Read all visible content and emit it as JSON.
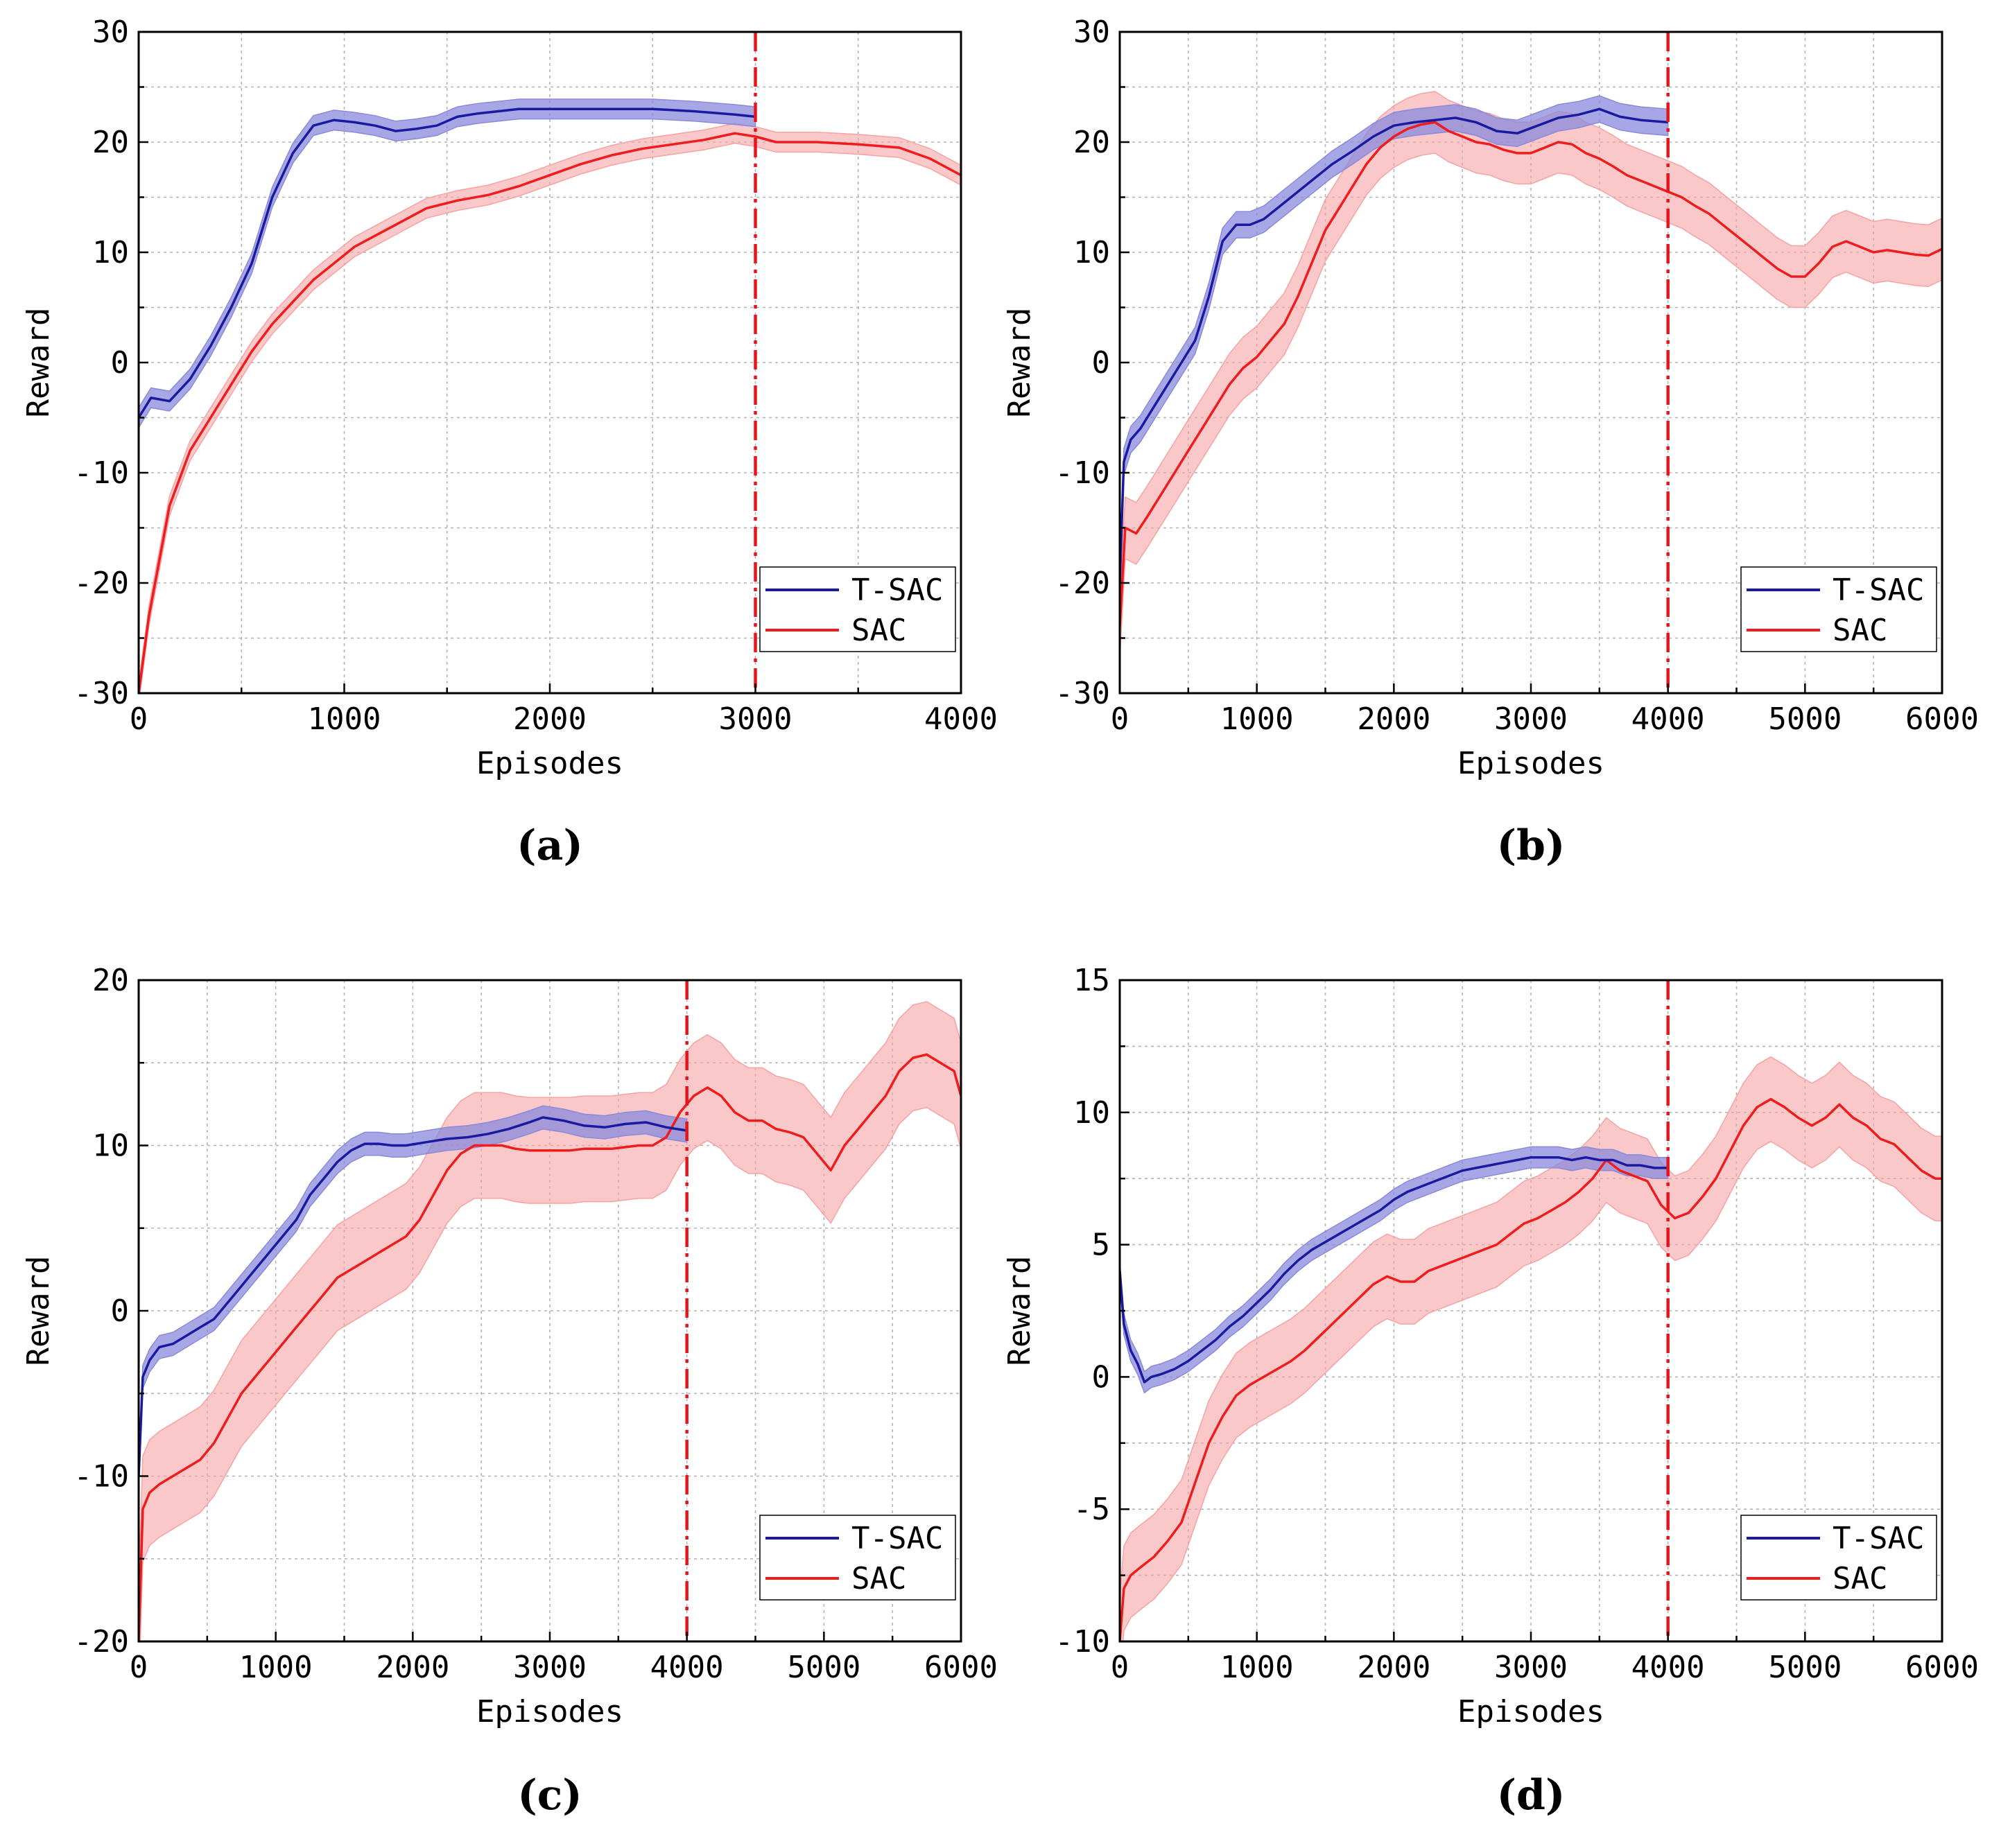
{
  "colors": {
    "tsac": "#1a1aa0",
    "tsac_band": "#8a8adc",
    "sac": "#ee1c1c",
    "sac_band": "#f6a3a3",
    "switch_line": "#e8141c"
  },
  "chart_data": [
    {
      "type": "line",
      "panel_label": "(a)",
      "xlabel": "Episodes",
      "ylabel": "Reward",
      "xlim": [
        0,
        4000
      ],
      "ylim": [
        -30,
        30
      ],
      "xticks": [
        0,
        1000,
        2000,
        3000,
        4000
      ],
      "yticks": [
        -30,
        -20,
        -10,
        0,
        10,
        20,
        30
      ],
      "grid": true,
      "legend_position": "bottom-right",
      "vline_x": 3000,
      "series": [
        {
          "name": "T-SAC",
          "color": "#1a1aa0",
          "x": [
            0,
            60,
            150,
            250,
            350,
            450,
            550,
            650,
            750,
            850,
            950,
            1050,
            1150,
            1250,
            1350,
            1450,
            1550,
            1650,
            1750,
            1850,
            1950,
            2100,
            2300,
            2500,
            2700,
            2900,
            3000
          ],
          "y": [
            -5,
            -3.2,
            -3.5,
            -1.5,
            1.5,
            5,
            9,
            15,
            19,
            21.5,
            22,
            21.8,
            21.5,
            21,
            21.2,
            21.5,
            22.3,
            22.6,
            22.8,
            23,
            23,
            23,
            23,
            23,
            22.8,
            22.5,
            22.3
          ],
          "band": 0.9
        },
        {
          "name": "SAC",
          "color": "#ee1c1c",
          "x": [
            0,
            50,
            150,
            250,
            350,
            450,
            550,
            650,
            750,
            850,
            950,
            1050,
            1150,
            1250,
            1400,
            1550,
            1700,
            1850,
            2000,
            2150,
            2300,
            2450,
            2600,
            2750,
            2900,
            3000,
            3100,
            3300,
            3500,
            3700,
            3850,
            4000
          ],
          "y": [
            -30,
            -23,
            -13,
            -8,
            -5,
            -2,
            1,
            3.5,
            5.5,
            7.5,
            9,
            10.5,
            11.5,
            12.5,
            14,
            14.7,
            15.2,
            16,
            17,
            18,
            18.8,
            19.4,
            19.8,
            20.2,
            20.8,
            20.5,
            20,
            20,
            19.8,
            19.5,
            18.5,
            17
          ],
          "band": 0.9
        }
      ]
    },
    {
      "type": "line",
      "panel_label": "(b)",
      "xlabel": "Episodes",
      "ylabel": "Reward",
      "xlim": [
        0,
        6000
      ],
      "ylim": [
        -30,
        30
      ],
      "xticks": [
        0,
        1000,
        2000,
        3000,
        4000,
        5000,
        6000
      ],
      "yticks": [
        -30,
        -20,
        -10,
        0,
        10,
        20,
        30
      ],
      "grid": true,
      "legend_position": "bottom-right",
      "vline_x": 4000,
      "series": [
        {
          "name": "T-SAC",
          "color": "#1a1aa0",
          "x": [
            0,
            30,
            80,
            150,
            250,
            350,
            450,
            550,
            650,
            750,
            850,
            950,
            1050,
            1150,
            1250,
            1400,
            1550,
            1700,
            1850,
            2000,
            2150,
            2300,
            2450,
            2600,
            2750,
            2900,
            3050,
            3200,
            3350,
            3500,
            3650,
            3800,
            4000
          ],
          "y": [
            -20,
            -9,
            -7,
            -6,
            -4,
            -2,
            0,
            2,
            6,
            11,
            12.5,
            12.5,
            13,
            14,
            15,
            16.5,
            18,
            19.2,
            20.5,
            21.5,
            21.8,
            22,
            22.2,
            21.8,
            21,
            20.8,
            21.5,
            22.2,
            22.5,
            23,
            22.3,
            22,
            21.8
          ],
          "band": 1.2
        },
        {
          "name": "SAC",
          "color": "#ee1c1c",
          "x": [
            0,
            40,
            120,
            200,
            300,
            400,
            500,
            600,
            700,
            800,
            900,
            1000,
            1100,
            1200,
            1300,
            1400,
            1500,
            1600,
            1700,
            1800,
            1900,
            2000,
            2100,
            2200,
            2300,
            2400,
            2500,
            2600,
            2700,
            2800,
            2900,
            3000,
            3100,
            3200,
            3300,
            3400,
            3500,
            3600,
            3700,
            3800,
            3900,
            4000,
            4100,
            4200,
            4300,
            4400,
            4500,
            4600,
            4700,
            4800,
            4900,
            5000,
            5100,
            5200,
            5300,
            5400,
            5500,
            5600,
            5700,
            5800,
            5900,
            6000
          ],
          "y": [
            -24,
            -15,
            -15.5,
            -14,
            -12,
            -10,
            -8,
            -6,
            -4,
            -2,
            -0.5,
            0.5,
            2,
            3.5,
            6,
            9,
            12,
            14,
            16,
            18,
            19.5,
            20.5,
            21.2,
            21.6,
            21.8,
            21,
            20.5,
            20,
            19.8,
            19.3,
            19,
            19,
            19.5,
            20,
            19.8,
            19,
            18.5,
            17.8,
            17,
            16.5,
            16,
            15.5,
            15,
            14.2,
            13.5,
            12.5,
            11.5,
            10.5,
            9.5,
            8.5,
            7.8,
            7.8,
            9,
            10.5,
            11,
            10.5,
            10,
            10.2,
            10,
            9.8,
            9.7,
            10.3
          ],
          "band": 2.8
        }
      ]
    },
    {
      "type": "line",
      "panel_label": "(c)",
      "xlabel": "Episodes",
      "ylabel": "Reward",
      "xlim": [
        0,
        6000
      ],
      "ylim": [
        -20,
        20
      ],
      "xticks": [
        0,
        1000,
        2000,
        3000,
        4000,
        5000,
        6000
      ],
      "yticks": [
        -20,
        -10,
        0,
        10,
        20
      ],
      "grid": true,
      "legend_position": "bottom-right",
      "vline_x": 4000,
      "series": [
        {
          "name": "T-SAC",
          "color": "#1a1aa0",
          "x": [
            0,
            30,
            80,
            150,
            250,
            350,
            450,
            550,
            650,
            750,
            850,
            950,
            1050,
            1150,
            1250,
            1350,
            1450,
            1550,
            1650,
            1750,
            1850,
            1950,
            2100,
            2250,
            2400,
            2550,
            2700,
            2850,
            2950,
            3100,
            3250,
            3400,
            3550,
            3700,
            3850,
            4000
          ],
          "y": [
            -10,
            -4,
            -3,
            -2.2,
            -2,
            -1.5,
            -1,
            -0.5,
            0.5,
            1.5,
            2.5,
            3.5,
            4.5,
            5.5,
            7,
            8,
            9,
            9.7,
            10.1,
            10.1,
            10,
            10,
            10.2,
            10.4,
            10.5,
            10.7,
            11,
            11.4,
            11.7,
            11.5,
            11.2,
            11.1,
            11.3,
            11.4,
            11.1,
            10.9
          ],
          "band": 0.7
        },
        {
          "name": "SAC",
          "color": "#ee1c1c",
          "x": [
            0,
            30,
            80,
            150,
            250,
            350,
            450,
            550,
            650,
            750,
            850,
            950,
            1050,
            1150,
            1250,
            1350,
            1450,
            1550,
            1650,
            1750,
            1850,
            1950,
            2050,
            2150,
            2250,
            2350,
            2450,
            2550,
            2650,
            2750,
            2850,
            2950,
            3050,
            3150,
            3250,
            3350,
            3450,
            3550,
            3650,
            3750,
            3850,
            3950,
            4050,
            4150,
            4250,
            4350,
            4450,
            4550,
            4650,
            4750,
            4850,
            4950,
            5050,
            5150,
            5250,
            5350,
            5450,
            5550,
            5650,
            5750,
            5850,
            5950,
            6000
          ],
          "y": [
            -20,
            -12,
            -11,
            -10.5,
            -10,
            -9.5,
            -9,
            -8,
            -6.5,
            -5,
            -4,
            -3,
            -2,
            -1,
            0,
            1,
            2,
            2.5,
            3,
            3.5,
            4,
            4.5,
            5.5,
            7,
            8.5,
            9.5,
            10,
            10,
            10,
            9.8,
            9.7,
            9.7,
            9.7,
            9.7,
            9.8,
            9.8,
            9.8,
            9.9,
            10,
            10,
            10.5,
            12,
            13,
            13.5,
            13,
            12,
            11.5,
            11.5,
            11,
            10.8,
            10.5,
            9.5,
            8.5,
            10,
            11,
            12,
            13,
            14.5,
            15.3,
            15.5,
            15,
            14.5,
            13
          ],
          "band": 3.2
        }
      ]
    },
    {
      "type": "line",
      "panel_label": "(d)",
      "xlabel": "Episodes",
      "ylabel": "Reward",
      "xlim": [
        0,
        6000
      ],
      "ylim": [
        -10,
        15
      ],
      "xticks": [
        0,
        1000,
        2000,
        3000,
        4000,
        5000,
        6000
      ],
      "yticks": [
        -10,
        -5,
        0,
        5,
        10,
        15
      ],
      "grid": true,
      "legend_position": "bottom-right",
      "vline_x": 4000,
      "series": [
        {
          "name": "T-SAC",
          "color": "#1a1aa0",
          "x": [
            0,
            30,
            80,
            130,
            180,
            230,
            300,
            400,
            500,
            600,
            700,
            800,
            900,
            1000,
            1100,
            1200,
            1300,
            1400,
            1500,
            1600,
            1700,
            1800,
            1900,
            2000,
            2100,
            2200,
            2300,
            2400,
            2500,
            2600,
            2700,
            2800,
            2900,
            3000,
            3100,
            3200,
            3300,
            3400,
            3500,
            3600,
            3700,
            3800,
            3900,
            4000
          ],
          "y": [
            4,
            2,
            1,
            0.5,
            -0.2,
            0,
            0.1,
            0.3,
            0.6,
            1,
            1.4,
            1.9,
            2.3,
            2.8,
            3.3,
            3.9,
            4.4,
            4.8,
            5.1,
            5.4,
            5.7,
            6,
            6.3,
            6.7,
            7,
            7.2,
            7.4,
            7.6,
            7.8,
            7.9,
            8,
            8.1,
            8.2,
            8.3,
            8.3,
            8.3,
            8.2,
            8.3,
            8.2,
            8.2,
            8.0,
            8.0,
            7.9,
            7.9
          ],
          "band": 0.4
        },
        {
          "name": "SAC",
          "color": "#ee1c1c",
          "x": [
            0,
            30,
            80,
            150,
            250,
            350,
            450,
            550,
            650,
            750,
            850,
            950,
            1050,
            1150,
            1250,
            1350,
            1450,
            1550,
            1650,
            1750,
            1850,
            1950,
            2050,
            2150,
            2250,
            2350,
            2450,
            2550,
            2650,
            2750,
            2850,
            2950,
            3050,
            3150,
            3250,
            3350,
            3450,
            3550,
            3650,
            3750,
            3850,
            3950,
            4050,
            4150,
            4250,
            4350,
            4450,
            4550,
            4650,
            4750,
            4850,
            4950,
            5050,
            5150,
            5250,
            5350,
            5450,
            5550,
            5650,
            5750,
            5850,
            5950,
            6000
          ],
          "y": [
            -10,
            -8,
            -7.5,
            -7.2,
            -6.8,
            -6.2,
            -5.5,
            -4,
            -2.5,
            -1.5,
            -0.7,
            -0.3,
            0,
            0.3,
            0.6,
            1,
            1.5,
            2,
            2.5,
            3,
            3.5,
            3.8,
            3.6,
            3.6,
            4,
            4.2,
            4.4,
            4.6,
            4.8,
            5,
            5.4,
            5.8,
            6,
            6.3,
            6.6,
            7,
            7.5,
            8.2,
            7.8,
            7.6,
            7.4,
            6.5,
            6,
            6.2,
            6.8,
            7.5,
            8.5,
            9.5,
            10.2,
            10.5,
            10.2,
            9.8,
            9.5,
            9.8,
            10.3,
            9.8,
            9.5,
            9,
            8.8,
            8.3,
            7.8,
            7.5,
            7.5
          ],
          "band": 1.6
        }
      ]
    }
  ]
}
